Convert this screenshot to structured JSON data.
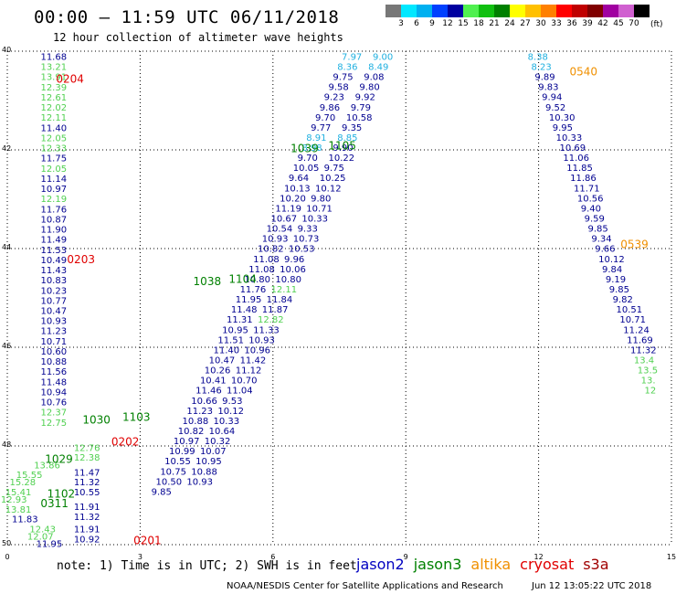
{
  "header": {
    "title": "00:00 – 11:59 UTC 06/11/2018",
    "subtitle": "12 hour collection of altimeter wave heights"
  },
  "legend": {
    "colors": [
      "#777777",
      "#00e8ff",
      "#00b0f0",
      "#0040ff",
      "#0000a0",
      "#50f050",
      "#10c010",
      "#008000",
      "#ffff00",
      "#ffc000",
      "#ff8000",
      "#ff0000",
      "#c00000",
      "#800000",
      "#a000a0",
      "#d060d0",
      "#000000"
    ],
    "labels": [
      "3",
      "6",
      "9",
      "12",
      "15",
      "18",
      "21",
      "24",
      "27",
      "30",
      "33",
      "36",
      "39",
      "42",
      "45",
      "70"
    ],
    "unit": "(ft)"
  },
  "axes": {
    "y_ticks": [
      "40",
      "42",
      "44",
      "46",
      "48",
      "50"
    ],
    "x_ticks": [
      "0",
      "3",
      "6",
      "9",
      "12",
      "15"
    ]
  },
  "map": {
    "lat_range": [
      40,
      50
    ],
    "lon_range": [
      0,
      15
    ],
    "color_by_range": {
      "dark_blue": "#000090",
      "light_green": "#50d050",
      "cyan": "#20b0e0",
      "green": "#008000",
      "red": "#e00000",
      "orange": "#f09000"
    },
    "tracks": [
      {
        "name": "west-column",
        "lon": 1.0,
        "lat_start": 40.1,
        "lat_step": 0.206,
        "values": [
          "11.68",
          "13.21",
          "13.91",
          "12.39",
          "12.61",
          "12.02",
          "12.11",
          "11.40",
          "12.05",
          "12.33",
          "11.75",
          "12.05",
          "11.14",
          "10.97",
          "12.19",
          "11.76",
          "10.87",
          "11.90",
          "11.49",
          "11.53",
          "10.49",
          "11.43",
          "10.83",
          "10.23",
          "10.77",
          "10.47",
          "10.93",
          "11.23",
          "10.71",
          "10.60",
          "10.88",
          "11.56",
          "11.48",
          "10.94",
          "10.76",
          "12.37",
          "12.75"
        ],
        "colors": [
          "dark_blue",
          "light_green",
          "light_green",
          "light_green",
          "light_green",
          "light_green",
          "light_green",
          "dark_blue",
          "light_green",
          "light_green",
          "dark_blue",
          "light_green",
          "dark_blue",
          "dark_blue",
          "light_green",
          "dark_blue",
          "dark_blue",
          "dark_blue",
          "dark_blue",
          "dark_blue",
          "dark_blue",
          "dark_blue",
          "dark_blue",
          "dark_blue",
          "dark_blue",
          "dark_blue",
          "dark_blue",
          "dark_blue",
          "dark_blue",
          "dark_blue",
          "dark_blue",
          "dark_blue",
          "dark_blue",
          "dark_blue",
          "dark_blue",
          "light_green",
          "light_green"
        ]
      },
      {
        "name": "diagonal-northeast",
        "lon_start": 7.8,
        "lat_start": 40.1,
        "lon_step": -0.1,
        "lat_step": 0.205,
        "values": [
          "7.97",
          "8.36",
          "9.75",
          "9.58",
          "9.23",
          "9.86",
          "9.70",
          "9.77",
          "8.91",
          "8.98",
          "9.70",
          "10.05",
          "9.64",
          "10.13",
          "10.20",
          "11.19",
          "10.67",
          "10.54",
          "10.93",
          "10.82",
          "11.08",
          "11.08",
          "10.80",
          "11.76",
          "11.95",
          "11.48",
          "11.31",
          "10.95",
          "11.51",
          "11.40",
          "10.47",
          "10.26",
          "10.41",
          "11.46",
          "10.66",
          "11.23",
          "10.88",
          "10.82",
          "10.97",
          "10.99",
          "10.55",
          "10.75",
          "10.50",
          "9.85"
        ],
        "colors": [
          "cyan",
          "cyan",
          "dark_blue",
          "dark_blue",
          "dark_blue",
          "dark_blue",
          "dark_blue",
          "dark_blue",
          "cyan",
          "cyan",
          "dark_blue",
          "dark_blue",
          "dark_blue",
          "dark_blue",
          "dark_blue",
          "dark_blue",
          "dark_blue",
          "dark_blue",
          "dark_blue",
          "dark_blue",
          "dark_blue",
          "dark_blue",
          "dark_blue",
          "dark_blue",
          "dark_blue",
          "dark_blue",
          "dark_blue",
          "dark_blue",
          "dark_blue",
          "dark_blue",
          "dark_blue",
          "dark_blue",
          "dark_blue",
          "dark_blue",
          "dark_blue",
          "dark_blue",
          "dark_blue",
          "dark_blue",
          "dark_blue",
          "dark_blue",
          "dark_blue",
          "dark_blue",
          "dark_blue",
          "dark_blue"
        ]
      },
      {
        "name": "diagonal-second",
        "lon_start": 8.5,
        "lat_start": 40.1,
        "lon_step": -0.1,
        "lat_step": 0.205,
        "values": [
          "9.00",
          "8.49",
          "9.08",
          "9.80",
          "9.92",
          "9.79",
          "10.58",
          "9.35",
          "8.85",
          "9.90",
          "10.22",
          "9.75",
          "10.25",
          "10.12",
          "9.80",
          "10.71",
          "10.33",
          "9.33",
          "10.73",
          "10.53",
          "9.96",
          "10.06",
          "10.80",
          "12.11",
          "11.84",
          "11.87",
          "12.82",
          "11.33",
          "10.93",
          "10.96",
          "11.42",
          "11.12",
          "10.70",
          "11.04",
          "9.53",
          "10.12",
          "10.33",
          "10.64",
          "10.32",
          "10.07",
          "10.95",
          "10.88",
          "10.93"
        ],
        "colors": [
          "cyan",
          "cyan",
          "dark_blue",
          "dark_blue",
          "dark_blue",
          "dark_blue",
          "dark_blue",
          "dark_blue",
          "cyan",
          "dark_blue",
          "dark_blue",
          "dark_blue",
          "dark_blue",
          "dark_blue",
          "dark_blue",
          "dark_blue",
          "dark_blue",
          "dark_blue",
          "dark_blue",
          "dark_blue",
          "dark_blue",
          "dark_blue",
          "dark_blue",
          "light_green",
          "dark_blue",
          "dark_blue",
          "light_green",
          "dark_blue",
          "dark_blue",
          "dark_blue",
          "dark_blue",
          "dark_blue",
          "dark_blue",
          "dark_blue",
          "dark_blue",
          "dark_blue",
          "dark_blue",
          "dark_blue",
          "dark_blue",
          "dark_blue",
          "dark_blue",
          "dark_blue",
          "dark_blue"
        ]
      },
      {
        "name": "southwest-cluster",
        "values": [
          "12.76",
          "12.38",
          "11.47",
          "11.32",
          "10.55",
          "11.91",
          "11.32",
          "11.91",
          "10.92",
          "13.86",
          "15.55",
          "15.28",
          "15.41",
          "12.93",
          "13.81",
          "11.83",
          "12.43",
          "12.07",
          "11.95"
        ],
        "colors": [
          "light_green",
          "light_green",
          "dark_blue",
          "dark_blue",
          "dark_blue",
          "dark_blue",
          "dark_blue",
          "dark_blue",
          "dark_blue",
          "light_green",
          "light_green",
          "light_green",
          "light_green",
          "light_green",
          "light_green",
          "dark_blue",
          "light_green",
          "light_green",
          "dark_blue"
        ]
      },
      {
        "name": "east-track",
        "lon_start": 12.0,
        "lat_start": 40.1,
        "lon_step": 0.08,
        "lat_step": 0.205,
        "values": [
          "8.38",
          "8.23",
          "9.89",
          "9.83",
          "9.94",
          "9.52",
          "10.30",
          "9.95",
          "10.33",
          "10.69",
          "11.06",
          "11.85",
          "11.86",
          "11.71",
          "10.56",
          "9.40",
          "9.59",
          "9.85",
          "9.34",
          "9.66",
          "10.12",
          "9.84",
          "9.19",
          "9.85",
          "9.82",
          "10.51",
          "10.71",
          "11.24",
          "11.69",
          "11.32",
          "13.4",
          "13.5",
          "13.",
          "12"
        ],
        "colors": [
          "cyan",
          "cyan",
          "dark_blue",
          "dark_blue",
          "dark_blue",
          "dark_blue",
          "dark_blue",
          "dark_blue",
          "dark_blue",
          "dark_blue",
          "dark_blue",
          "dark_blue",
          "dark_blue",
          "dark_blue",
          "dark_blue",
          "dark_blue",
          "dark_blue",
          "dark_blue",
          "dark_blue",
          "dark_blue",
          "dark_blue",
          "dark_blue",
          "dark_blue",
          "dark_blue",
          "dark_blue",
          "dark_blue",
          "dark_blue",
          "dark_blue",
          "dark_blue",
          "dark_blue",
          "light_green",
          "light_green",
          "light_green",
          "light_green"
        ]
      }
    ],
    "time_labels": [
      {
        "text": "0204",
        "color": "red",
        "lon": 1.1,
        "lat": 40.55
      },
      {
        "text": "0203",
        "color": "red",
        "lon": 1.35,
        "lat": 44.2
      },
      {
        "text": "0202",
        "color": "red",
        "lon": 2.35,
        "lat": 47.9
      },
      {
        "text": "0201",
        "color": "red",
        "lon": 2.85,
        "lat": 49.9
      },
      {
        "text": "1105",
        "color": "green",
        "lon": 7.25,
        "lat": 41.9
      },
      {
        "text": "1039",
        "color": "green",
        "lon": 6.4,
        "lat": 41.95
      },
      {
        "text": "1104",
        "color": "green",
        "lon": 5.0,
        "lat": 44.6
      },
      {
        "text": "1038",
        "color": "green",
        "lon": 4.2,
        "lat": 44.65
      },
      {
        "text": "1103",
        "color": "green",
        "lon": 2.6,
        "lat": 47.4
      },
      {
        "text": "1030",
        "color": "green",
        "lon": 1.7,
        "lat": 47.45
      },
      {
        "text": "1029",
        "color": "green",
        "lon": 0.85,
        "lat": 48.25
      },
      {
        "text": "1102",
        "color": "green",
        "lon": 0.9,
        "lat": 48.95
      },
      {
        "text": "0311",
        "color": "green",
        "lon": 0.75,
        "lat": 49.15
      },
      {
        "text": "0540",
        "color": "orange",
        "lon": 12.7,
        "lat": 40.4
      },
      {
        "text": "0539",
        "color": "orange",
        "lon": 13.85,
        "lat": 43.9
      }
    ]
  },
  "footer": {
    "note": "note: 1) Time is in UTC; 2) SWH is in feet",
    "satellites": [
      {
        "name": "jason2",
        "color": "#0000c0"
      },
      {
        "name": "jason3",
        "color": "#008000"
      },
      {
        "name": "altika",
        "color": "#f09000"
      },
      {
        "name": "cryosat",
        "color": "#e00000"
      },
      {
        "name": "s3a",
        "color": "#a00000"
      }
    ],
    "credit": "NOAA/NESDIS Center for Satellite Applications and Research",
    "timestamp": "Jun 12 13:05:22 UTC 2018"
  }
}
